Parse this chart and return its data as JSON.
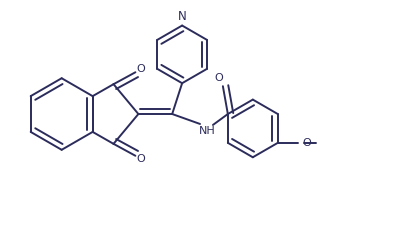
{
  "background_color": "#ffffff",
  "line_color": "#2c2c5c",
  "line_width": 1.4,
  "figsize": [
    4.06,
    2.34
  ],
  "dpi": 100,
  "xlim": [
    0,
    4.06
  ],
  "ylim": [
    0,
    2.34
  ]
}
